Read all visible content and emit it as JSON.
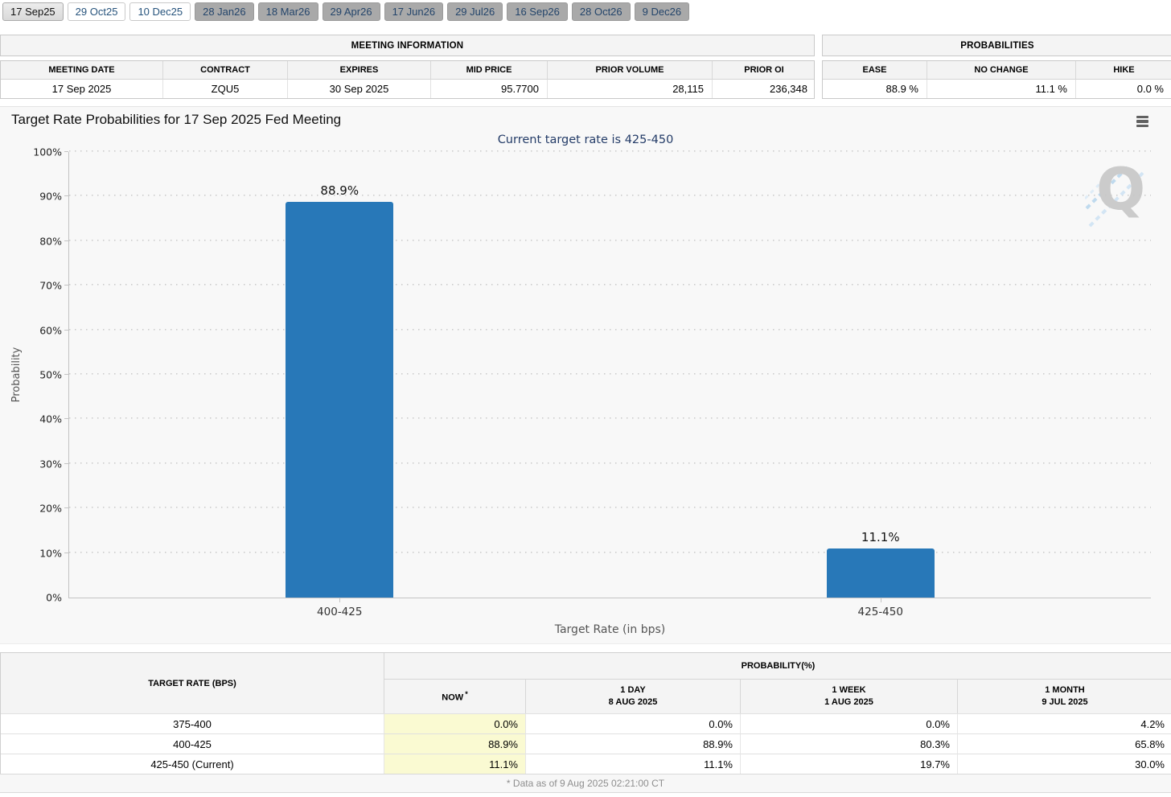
{
  "tabs": {
    "items": [
      {
        "label": "17 Sep25",
        "state": "selected"
      },
      {
        "label": "29 Oct25",
        "state": "near"
      },
      {
        "label": "10 Dec25",
        "state": "near"
      },
      {
        "label": "28 Jan26",
        "state": "far"
      },
      {
        "label": "18 Mar26",
        "state": "far"
      },
      {
        "label": "29 Apr26",
        "state": "far"
      },
      {
        "label": "17 Jun26",
        "state": "far"
      },
      {
        "label": "29 Jul26",
        "state": "far"
      },
      {
        "label": "16 Sep26",
        "state": "far"
      },
      {
        "label": "28 Oct26",
        "state": "far"
      },
      {
        "label": "9 Dec26",
        "state": "far"
      }
    ]
  },
  "meeting_info": {
    "title": "MEETING INFORMATION",
    "headers": [
      "MEETING DATE",
      "CONTRACT",
      "EXPIRES",
      "MID PRICE",
      "PRIOR VOLUME",
      "PRIOR OI"
    ],
    "row": {
      "meeting_date": "17 Sep 2025",
      "contract": "ZQU5",
      "expires": "30 Sep 2025",
      "mid_price": "95.7700",
      "prior_volume": "28,115",
      "prior_oi": "236,348"
    }
  },
  "probabilities": {
    "title": "PROBABILITIES",
    "headers": [
      "EASE",
      "NO CHANGE",
      "HIKE"
    ],
    "row": {
      "ease": "88.9 %",
      "no_change": "11.1 %",
      "hike": "0.0 %"
    }
  },
  "chart_data": {
    "type": "bar",
    "title": "Target Rate Probabilities for 17 Sep 2025 Fed Meeting",
    "subtitle": "Current target rate is 425-450",
    "categories": [
      "400-425",
      "425-450"
    ],
    "values": [
      88.9,
      11.1
    ],
    "value_labels": [
      "88.9%",
      "11.1%"
    ],
    "xlabel": "Target Rate (in bps)",
    "ylabel": "Probability",
    "ylim": [
      0,
      100
    ],
    "ytick_step": 10,
    "yticks": [
      "0%",
      "10%",
      "20%",
      "30%",
      "40%",
      "50%",
      "60%",
      "70%",
      "80%",
      "90%",
      "100%"
    ],
    "grid": "horizontal dotted",
    "legend_position": "none",
    "bar_color": "#2878b8",
    "watermark_letter": "Q"
  },
  "history_table": {
    "rate_header": "TARGET RATE (BPS)",
    "group_header": "PROBABILITY(%)",
    "columns": [
      {
        "line1": "NOW",
        "sup": "*",
        "line2": ""
      },
      {
        "line1": "1 DAY",
        "line2": "8 AUG 2025"
      },
      {
        "line1": "1 WEEK",
        "line2": "1 AUG 2025"
      },
      {
        "line1": "1 MONTH",
        "line2": "9 JUL 2025"
      }
    ],
    "rows": [
      {
        "rate": "375-400",
        "now": "0.0%",
        "day1": "0.0%",
        "week1": "0.0%",
        "month1": "4.2%"
      },
      {
        "rate": "400-425",
        "now": "88.9%",
        "day1": "88.9%",
        "week1": "80.3%",
        "month1": "65.8%"
      },
      {
        "rate": "425-450 (Current)",
        "now": "11.1%",
        "day1": "11.1%",
        "week1": "19.7%",
        "month1": "30.0%"
      }
    ]
  },
  "footer": {
    "note": "* Data as of 9 Aug 2025 02:21:00 CT"
  },
  "colors": {
    "bar_blue": "#2878b8",
    "now_highlight": "#fafad2",
    "subtitle_navy": "#233b67",
    "tab_far_bg": "#a9a9a9",
    "watermark_gray": "#c7c7c7",
    "watermark_blue": "#b9d7ee"
  }
}
